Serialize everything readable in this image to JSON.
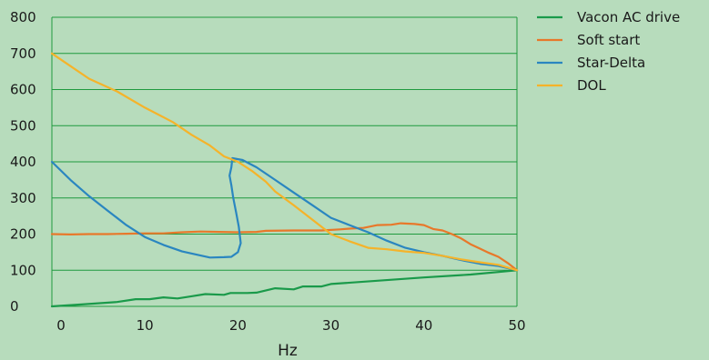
{
  "chart_data": {
    "type": "line",
    "title": "",
    "xlabel": "Hz",
    "ylabel": "",
    "xlim": [
      0,
      50
    ],
    "ylim": [
      0,
      800
    ],
    "x_ticks": [
      "0",
      "10",
      "20",
      "30",
      "40",
      "50"
    ],
    "y_ticks": [
      "0",
      "100",
      "200",
      "300",
      "400",
      "500",
      "600",
      "700",
      "800"
    ],
    "grid": "horizontal",
    "legend_position": "right",
    "background_color": "#b7dcbc",
    "grid_color": "#1f9a3e",
    "series": [
      {
        "name": "Vacon AC drive",
        "color": "#1a9a4a",
        "points": [
          [
            0,
            0
          ],
          [
            3,
            5
          ],
          [
            7,
            12
          ],
          [
            9,
            20
          ],
          [
            10.5,
            20
          ],
          [
            12,
            25
          ],
          [
            13.5,
            22
          ],
          [
            15,
            28
          ],
          [
            16.5,
            34
          ],
          [
            18.5,
            32
          ],
          [
            19.2,
            37
          ],
          [
            21,
            37
          ],
          [
            22,
            38
          ],
          [
            24,
            50
          ],
          [
            26,
            47
          ],
          [
            27,
            55
          ],
          [
            29,
            55
          ],
          [
            30,
            62
          ],
          [
            40,
            80
          ],
          [
            45,
            88
          ],
          [
            50,
            100
          ]
        ]
      },
      {
        "name": "Soft start",
        "color": "#e8782a",
        "points": [
          [
            0,
            200
          ],
          [
            2,
            199
          ],
          [
            4,
            200
          ],
          [
            6,
            200
          ],
          [
            8,
            201
          ],
          [
            10,
            202
          ],
          [
            12,
            202
          ],
          [
            14,
            205
          ],
          [
            16,
            207
          ],
          [
            18,
            206
          ],
          [
            20,
            205
          ],
          [
            22,
            206
          ],
          [
            23,
            209
          ],
          [
            26,
            210
          ],
          [
            29,
            210
          ],
          [
            31,
            213
          ],
          [
            32,
            215
          ],
          [
            33.5,
            217
          ],
          [
            35,
            225
          ],
          [
            36.5,
            226
          ],
          [
            37.5,
            230
          ],
          [
            39,
            228
          ],
          [
            40,
            225
          ],
          [
            41,
            214
          ],
          [
            42,
            210
          ],
          [
            43,
            200
          ],
          [
            44,
            188
          ],
          [
            45,
            172
          ],
          [
            46,
            160
          ],
          [
            47,
            148
          ],
          [
            48,
            137
          ],
          [
            49,
            120
          ],
          [
            50,
            100
          ]
        ]
      },
      {
        "name": "Star-Delta",
        "color": "#2a86c0",
        "points": [
          [
            0,
            400
          ],
          [
            2,
            350
          ],
          [
            4,
            305
          ],
          [
            6,
            265
          ],
          [
            8,
            225
          ],
          [
            10,
            192
          ],
          [
            12,
            170
          ],
          [
            14,
            152
          ],
          [
            17,
            135
          ],
          [
            18.5,
            136
          ],
          [
            19.3,
            137
          ],
          [
            20,
            150
          ],
          [
            20.3,
            175
          ],
          [
            20.1,
            220
          ],
          [
            19.8,
            260
          ],
          [
            19.5,
            300
          ],
          [
            19.3,
            335
          ],
          [
            19.1,
            362
          ],
          [
            19.3,
            385
          ],
          [
            19.4,
            410
          ],
          [
            20.5,
            405
          ],
          [
            22,
            385
          ],
          [
            24,
            350
          ],
          [
            26,
            315
          ],
          [
            28,
            280
          ],
          [
            30,
            245
          ],
          [
            32,
            225
          ],
          [
            34,
            205
          ],
          [
            36,
            182
          ],
          [
            38,
            162
          ],
          [
            40,
            150
          ],
          [
            42,
            140
          ],
          [
            44,
            128
          ],
          [
            46,
            118
          ],
          [
            48,
            112
          ],
          [
            50,
            100
          ]
        ]
      },
      {
        "name": "DOL",
        "color": "#f5b32a",
        "points": [
          [
            0,
            700
          ],
          [
            2,
            665
          ],
          [
            4,
            630
          ],
          [
            7,
            595
          ],
          [
            10,
            550
          ],
          [
            13,
            510
          ],
          [
            15,
            475
          ],
          [
            17,
            445
          ],
          [
            18.5,
            415
          ],
          [
            20,
            400
          ],
          [
            21.5,
            375
          ],
          [
            23,
            345
          ],
          [
            24,
            318
          ],
          [
            26,
            280
          ],
          [
            28,
            240
          ],
          [
            30,
            200
          ],
          [
            32,
            180
          ],
          [
            34,
            162
          ],
          [
            36,
            158
          ],
          [
            38,
            152
          ],
          [
            40,
            148
          ],
          [
            42,
            140
          ],
          [
            44,
            130
          ],
          [
            46,
            122
          ],
          [
            48,
            115
          ],
          [
            50,
            100
          ]
        ]
      }
    ]
  }
}
